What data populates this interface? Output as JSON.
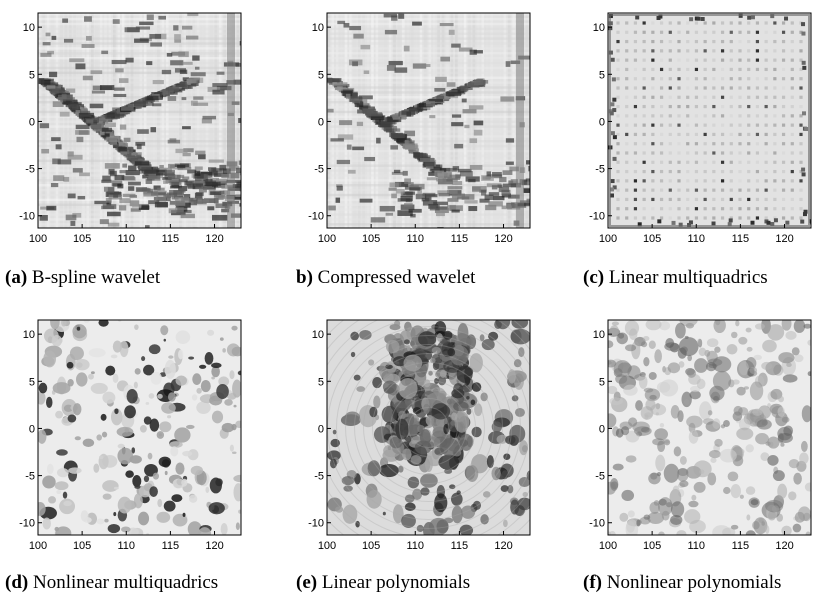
{
  "figure": {
    "panels": [
      {
        "id": "a",
        "tag": "(a)",
        "caption": " B-spline wavelet",
        "style": "wavelet",
        "x_ticks": [
          "100",
          "105",
          "110",
          "115",
          "120"
        ],
        "y_ticks": [
          "10",
          "5",
          "0",
          "-5",
          "-10"
        ]
      },
      {
        "id": "b",
        "tag": "b)",
        "caption": " Compressed wavelet",
        "style": "compressed",
        "x_ticks": [
          "100",
          "105",
          "110",
          "115",
          "120"
        ],
        "y_ticks": [
          "10",
          "5",
          "0",
          "-5",
          "-10"
        ]
      },
      {
        "id": "c",
        "tag": "(c)",
        "caption": " Linear multiquadrics",
        "style": "dots",
        "x_ticks": [
          "100",
          "105",
          "110",
          "115",
          "120"
        ],
        "y_ticks": [
          "10",
          "5",
          "0",
          "-5",
          "-10"
        ]
      },
      {
        "id": "d",
        "tag": "(d)",
        "caption": " Nonlinear multiquadrics",
        "style": "blobs",
        "x_ticks": [
          "100",
          "105",
          "110",
          "115",
          "120"
        ],
        "y_ticks": [
          "10",
          "5",
          "0",
          "-5",
          "-10"
        ]
      },
      {
        "id": "e",
        "tag": "(e)",
        "caption": " Linear polynomials",
        "style": "dense",
        "x_ticks": [
          "100",
          "105",
          "110",
          "115",
          "120"
        ],
        "y_ticks": [
          "10",
          "5",
          "0",
          "-5",
          "-10"
        ]
      },
      {
        "id": "f",
        "tag": "(f)",
        "caption": " Nonlinear polynomials",
        "style": "soft",
        "x_ticks": [
          "100",
          "105",
          "110",
          "115",
          "120"
        ],
        "y_ticks": [
          "10",
          "5",
          "0",
          "-5",
          "-10"
        ]
      }
    ]
  }
}
